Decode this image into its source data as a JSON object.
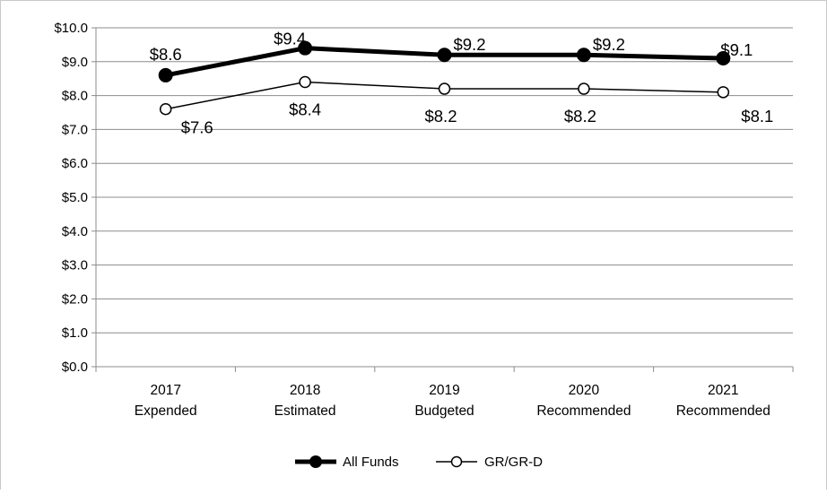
{
  "chart_data": {
    "type": "line",
    "title": "",
    "xlabel": "",
    "ylabel": "",
    "categories": [
      [
        "2017",
        "Expended"
      ],
      [
        "2018",
        "Estimated"
      ],
      [
        "2019",
        "Budgeted"
      ],
      [
        "2020",
        "Recommended"
      ],
      [
        "2021",
        "Recommended"
      ]
    ],
    "ylim": [
      0,
      10
    ],
    "ytick_step": 1,
    "ytick_labels": [
      "$0.0",
      "$1.0",
      "$2.0",
      "$3.0",
      "$4.0",
      "$5.0",
      "$6.0",
      "$7.0",
      "$8.0",
      "$9.0",
      "$10.0"
    ],
    "grid": "horizontal",
    "legend_position": "bottom",
    "series": [
      {
        "name": "All Funds",
        "values": [
          8.6,
          9.4,
          9.2,
          9.2,
          9.1
        ],
        "labels": [
          "$8.6",
          "$9.4",
          "$9.2",
          "$9.2",
          "$9.1"
        ],
        "color": "#000000",
        "marker": "filled-circle",
        "line_style": "thick"
      },
      {
        "name": "GR/GR-D",
        "values": [
          7.6,
          8.4,
          8.2,
          8.2,
          8.1
        ],
        "labels": [
          "$7.6",
          "$8.4",
          "$8.2",
          "$8.2",
          "$8.1"
        ],
        "color": "#000000",
        "marker": "open-circle",
        "line_style": "thin"
      }
    ]
  }
}
